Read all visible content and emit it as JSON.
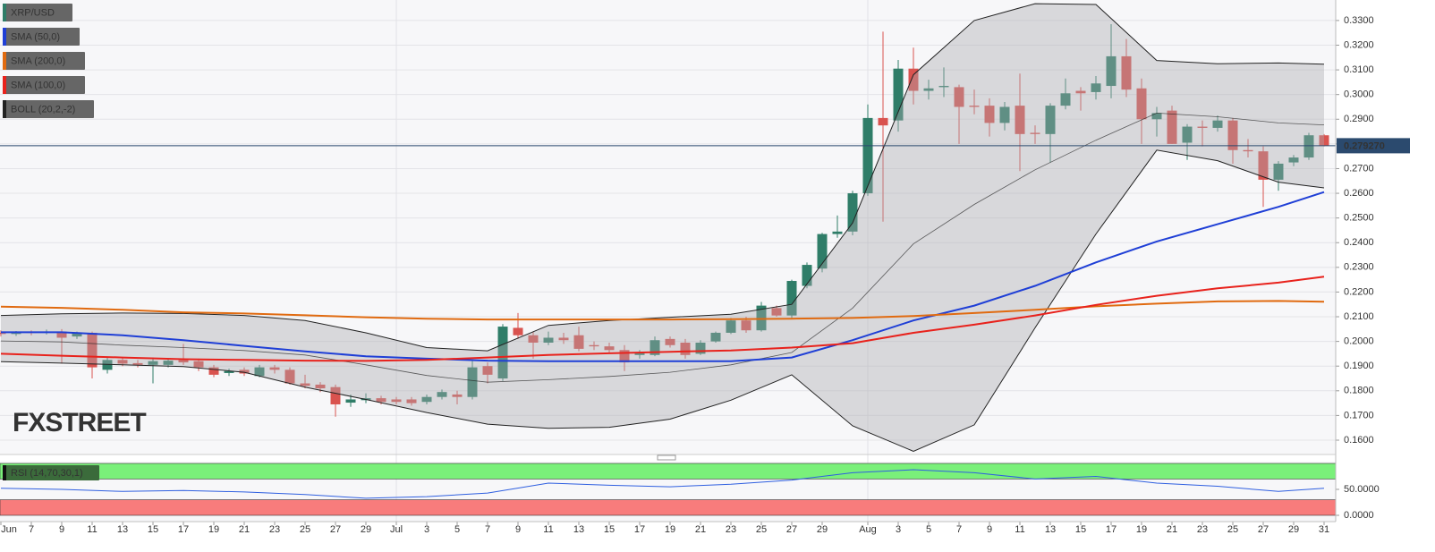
{
  "chart_data": {
    "type": "candlestick",
    "title": "XRP/USD",
    "up_color": "#2f7d68",
    "down_color": "#d9534f",
    "categories": [
      "Jun 5",
      "Jun 6",
      "Jun 7",
      "Jun 8",
      "Jun 9",
      "Jun 10",
      "Jun 11",
      "Jun 12",
      "Jun 13",
      "Jun 14",
      "Jun 15",
      "Jun 16",
      "Jun 17",
      "Jun 18",
      "Jun 19",
      "Jun 20",
      "Jun 21",
      "Jun 22",
      "Jun 23",
      "Jun 24",
      "Jun 25",
      "Jun 26",
      "Jun 27",
      "Jun 28",
      "Jun 29",
      "Jun 30",
      "Jul 1",
      "Jul 2",
      "Jul 3",
      "Jul 4",
      "Jul 5",
      "Jul 6",
      "Jul 7",
      "Jul 8",
      "Jul 9",
      "Jul 10",
      "Jul 11",
      "Jul 12",
      "Jul 13",
      "Jul 14",
      "Jul 15",
      "Jul 16",
      "Jul 17",
      "Jul 18",
      "Jul 19",
      "Jul 20",
      "Jul 21",
      "Jul 22",
      "Jul 23",
      "Jul 24",
      "Jul 25",
      "Jul 26",
      "Jul 27",
      "Jul 28",
      "Jul 29",
      "Jul 30",
      "Jul 31",
      "Aug 1",
      "Aug 2",
      "Aug 3",
      "Aug 4",
      "Aug 5",
      "Aug 6",
      "Aug 7",
      "Aug 8",
      "Aug 9",
      "Aug 10",
      "Aug 11",
      "Aug 12",
      "Aug 13",
      "Aug 14",
      "Aug 15",
      "Aug 16",
      "Aug 17",
      "Aug 18",
      "Aug 19",
      "Aug 20",
      "Aug 21",
      "Aug 22",
      "Aug 23",
      "Aug 24",
      "Aug 25",
      "Aug 26",
      "Aug 27",
      "Aug 28",
      "Aug 29",
      "Aug 30",
      "Aug 31"
    ],
    "open": [
      0.2035,
      0.203,
      0.2038,
      0.2035,
      0.204,
      0.202,
      0.2035,
      0.1885,
      0.1925,
      0.1912,
      0.1905,
      0.1905,
      0.1925,
      0.192,
      0.1895,
      0.1872,
      0.1885,
      0.186,
      0.1895,
      0.1885,
      0.183,
      0.1825,
      0.1815,
      0.1752,
      0.1762,
      0.177,
      0.1765,
      0.1765,
      0.1755,
      0.1775,
      0.1785,
      0.1775,
      0.19,
      0.185,
      0.2055,
      0.2025,
      0.1995,
      0.2015,
      0.2025,
      0.1985,
      0.198,
      0.1965,
      0.1945,
      0.1945,
      0.201,
      0.1995,
      0.195,
      0.2,
      0.2035,
      0.2085,
      0.2045,
      0.2135,
      0.2105,
      0.2225,
      0.2295,
      0.2435,
      0.2445,
      0.26,
      0.2905,
      0.2895,
      0.3105,
      0.3015,
      0.303,
      0.303,
      0.2955,
      0.2955,
      0.2885,
      0.2955,
      0.2845,
      0.284,
      0.2955,
      0.3015,
      0.301,
      0.3035,
      0.3155,
      0.3025,
      0.29,
      0.2935,
      0.2805,
      0.287,
      0.2865,
      0.2895,
      0.2775,
      0.277,
      0.2655,
      0.2725,
      0.2745,
      0.2835
    ],
    "high": [
      0.2045,
      0.2042,
      0.2045,
      0.2048,
      0.205,
      0.204,
      0.204,
      0.1935,
      0.1935,
      0.1925,
      0.1935,
      0.193,
      0.199,
      0.193,
      0.1905,
      0.189,
      0.1895,
      0.1905,
      0.1905,
      0.1895,
      0.1865,
      0.1835,
      0.1825,
      0.1785,
      0.179,
      0.178,
      0.1775,
      0.1775,
      0.1785,
      0.1805,
      0.18,
      0.1925,
      0.1915,
      0.207,
      0.2115,
      0.204,
      0.204,
      0.2035,
      0.206,
      0.2,
      0.1995,
      0.1985,
      0.1965,
      0.202,
      0.202,
      0.201,
      0.2005,
      0.204,
      0.2095,
      0.21,
      0.216,
      0.2145,
      0.225,
      0.232,
      0.244,
      0.251,
      0.261,
      0.296,
      0.3255,
      0.314,
      0.319,
      0.306,
      0.311,
      0.304,
      0.302,
      0.2985,
      0.297,
      0.3085,
      0.2875,
      0.2965,
      0.3065,
      0.303,
      0.3075,
      0.3285,
      0.3225,
      0.3065,
      0.295,
      0.2955,
      0.288,
      0.2895,
      0.2915,
      0.2905,
      0.282,
      0.279,
      0.273,
      0.2755,
      0.2845,
      0.284
    ],
    "low": [
      0.202,
      0.2022,
      0.2025,
      0.2028,
      0.191,
      0.201,
      0.185,
      0.187,
      0.19,
      0.1895,
      0.183,
      0.1895,
      0.1905,
      0.188,
      0.1855,
      0.186,
      0.186,
      0.1855,
      0.187,
      0.1825,
      0.181,
      0.1795,
      0.1695,
      0.1735,
      0.175,
      0.1745,
      0.1745,
      0.174,
      0.1745,
      0.1765,
      0.1745,
      0.1765,
      0.183,
      0.184,
      0.201,
      0.193,
      0.1985,
      0.199,
      0.196,
      0.1965,
      0.1955,
      0.188,
      0.193,
      0.194,
      0.1975,
      0.193,
      0.1945,
      0.1995,
      0.203,
      0.2035,
      0.204,
      0.21,
      0.2095,
      0.2215,
      0.228,
      0.242,
      0.243,
      0.259,
      0.2485,
      0.285,
      0.296,
      0.298,
      0.299,
      0.28,
      0.292,
      0.283,
      0.2855,
      0.269,
      0.28,
      0.2725,
      0.294,
      0.2935,
      0.298,
      0.2985,
      0.299,
      0.28,
      0.283,
      0.28,
      0.2735,
      0.279,
      0.285,
      0.272,
      0.2745,
      0.2545,
      0.261,
      0.271,
      0.2735,
      0.279
    ],
    "close": [
      0.203,
      0.2038,
      0.2035,
      0.204,
      0.2015,
      0.2035,
      0.1895,
      0.1925,
      0.191,
      0.1905,
      0.192,
      0.1922,
      0.1915,
      0.1895,
      0.1865,
      0.188,
      0.187,
      0.1895,
      0.1885,
      0.183,
      0.182,
      0.181,
      0.1745,
      0.1765,
      0.177,
      0.1755,
      0.1755,
      0.175,
      0.1775,
      0.1795,
      0.1775,
      0.1895,
      0.1865,
      0.206,
      0.2025,
      0.1995,
      0.2015,
      0.2005,
      0.197,
      0.198,
      0.1965,
      0.1915,
      0.1955,
      0.2005,
      0.1985,
      0.1945,
      0.1995,
      0.2035,
      0.2085,
      0.2045,
      0.2145,
      0.2105,
      0.2245,
      0.231,
      0.2435,
      0.2445,
      0.26,
      0.2905,
      0.2875,
      0.3105,
      0.3015,
      0.3025,
      0.3035,
      0.295,
      0.295,
      0.2885,
      0.295,
      0.284,
      0.284,
      0.2955,
      0.3005,
      0.3005,
      0.3045,
      0.3155,
      0.302,
      0.29,
      0.2925,
      0.28,
      0.287,
      0.2865,
      0.2895,
      0.2775,
      0.277,
      0.2655,
      0.272,
      0.2745,
      0.2835,
      0.27927
    ],
    "ylim": [
      0.1542,
      0.3383
    ],
    "yticks": [
      {
        "value": 0.16,
        "label": "0.1600"
      },
      {
        "value": 0.17,
        "label": "0.1700"
      },
      {
        "value": 0.18,
        "label": "0.1800"
      },
      {
        "value": 0.19,
        "label": "0.1900"
      },
      {
        "value": 0.2,
        "label": "0.2000"
      },
      {
        "value": 0.21,
        "label": "0.2100"
      },
      {
        "value": 0.22,
        "label": "0.2200"
      },
      {
        "value": 0.23,
        "label": "0.2300"
      },
      {
        "value": 0.24,
        "label": "0.2400"
      },
      {
        "value": 0.25,
        "label": "0.2500"
      },
      {
        "value": 0.26,
        "label": "0.2600"
      },
      {
        "value": 0.27,
        "label": "0.2700"
      },
      {
        "value": 0.28,
        "label": "0.2800"
      },
      {
        "value": 0.29,
        "label": "0.2900"
      },
      {
        "value": 0.3,
        "label": "0.3000"
      },
      {
        "value": 0.31,
        "label": "0.3100"
      },
      {
        "value": 0.32,
        "label": "0.3200"
      },
      {
        "value": 0.33,
        "label": "0.3300"
      }
    ],
    "xticks": [
      {
        "value": "Jun 5",
        "label": "Jun"
      },
      {
        "value": "Jun 7",
        "label": "7"
      },
      {
        "value": "Jun 9",
        "label": "9"
      },
      {
        "value": "Jun 11",
        "label": "11"
      },
      {
        "value": "Jun 13",
        "label": "13"
      },
      {
        "value": "Jun 15",
        "label": "15"
      },
      {
        "value": "Jun 17",
        "label": "17"
      },
      {
        "value": "Jun 19",
        "label": "19"
      },
      {
        "value": "Jun 21",
        "label": "21"
      },
      {
        "value": "Jun 23",
        "label": "23"
      },
      {
        "value": "Jun 25",
        "label": "25"
      },
      {
        "value": "Jun 27",
        "label": "27"
      },
      {
        "value": "Jun 29",
        "label": "29"
      },
      {
        "value": "Jul 1",
        "label": "Jul"
      },
      {
        "value": "Jul 3",
        "label": "3"
      },
      {
        "value": "Jul 5",
        "label": "5"
      },
      {
        "value": "Jul 7",
        "label": "7"
      },
      {
        "value": "Jul 9",
        "label": "9"
      },
      {
        "value": "Jul 11",
        "label": "11"
      },
      {
        "value": "Jul 13",
        "label": "13"
      },
      {
        "value": "Jul 15",
        "label": "15"
      },
      {
        "value": "Jul 17",
        "label": "17"
      },
      {
        "value": "Jul 19",
        "label": "19"
      },
      {
        "value": "Jul 21",
        "label": "21"
      },
      {
        "value": "Jul 23",
        "label": "23"
      },
      {
        "value": "Jul 25",
        "label": "25"
      },
      {
        "value": "Jul 27",
        "label": "27"
      },
      {
        "value": "Jul 29",
        "label": "29"
      },
      {
        "value": "Aug 1",
        "label": "Aug"
      },
      {
        "value": "Aug 3",
        "label": "3"
      },
      {
        "value": "Aug 5",
        "label": "5"
      },
      {
        "value": "Aug 7",
        "label": "7"
      },
      {
        "value": "Aug 9",
        "label": "9"
      },
      {
        "value": "Aug 11",
        "label": "11"
      },
      {
        "value": "Aug 13",
        "label": "13"
      },
      {
        "value": "Aug 15",
        "label": "15"
      },
      {
        "value": "Aug 17",
        "label": "17"
      },
      {
        "value": "Aug 19",
        "label": "19"
      },
      {
        "value": "Aug 21",
        "label": "21"
      },
      {
        "value": "Aug 23",
        "label": "23"
      },
      {
        "value": "Aug 25",
        "label": "25"
      },
      {
        "value": "Aug 27",
        "label": "27"
      },
      {
        "value": "Aug 29",
        "label": "29"
      },
      {
        "value": "Aug 31",
        "label": "31"
      }
    ],
    "month_lines": [
      "Jul 1",
      "Aug 1"
    ],
    "last_price": {
      "value": 0.27927,
      "label": "0.279270"
    },
    "series": [
      {
        "name": "SMA (50,0)",
        "color": "#1f3fd6",
        "x": [
          "Jun 5",
          "Jun 9",
          "Jun 13",
          "Jun 17",
          "Jun 21",
          "Jun 25",
          "Jun 29",
          "Jul 3",
          "Jul 7",
          "Jul 11",
          "Jul 15",
          "Jul 19",
          "Jul 23",
          "Jul 27",
          "Jul 31",
          "Aug 4",
          "Aug 8",
          "Aug 12",
          "Aug 16",
          "Aug 20",
          "Aug 24",
          "Aug 28",
          "Aug 31"
        ],
        "values": [
          0.2037,
          0.2037,
          0.2025,
          0.2005,
          0.1982,
          0.196,
          0.194,
          0.193,
          0.1922,
          0.192,
          0.192,
          0.192,
          0.192,
          0.1935,
          0.2005,
          0.2085,
          0.2145,
          0.2225,
          0.232,
          0.2405,
          0.2475,
          0.2545,
          0.2605
        ]
      },
      {
        "name": "SMA (200,0)",
        "color": "#e06a10",
        "x": [
          "Jun 5",
          "Jun 9",
          "Jun 13",
          "Jun 17",
          "Jun 21",
          "Jun 25",
          "Jun 29",
          "Jul 3",
          "Jul 7",
          "Jul 11",
          "Jul 15",
          "Jul 19",
          "Jul 23",
          "Jul 27",
          "Jul 31",
          "Aug 4",
          "Aug 8",
          "Aug 12",
          "Aug 16",
          "Aug 20",
          "Aug 24",
          "Aug 28",
          "Aug 31"
        ],
        "values": [
          0.2141,
          0.2136,
          0.2128,
          0.2118,
          0.2113,
          0.2106,
          0.2098,
          0.2092,
          0.2089,
          0.2089,
          0.2089,
          0.2089,
          0.209,
          0.2092,
          0.2095,
          0.2103,
          0.2115,
          0.2128,
          0.2142,
          0.2153,
          0.2162,
          0.2164,
          0.2161
        ]
      },
      {
        "name": "SMA (100,0)",
        "color": "#e8221c",
        "x": [
          "Jun 5",
          "Jun 9",
          "Jun 13",
          "Jun 17",
          "Jun 21",
          "Jun 25",
          "Jun 29",
          "Jul 3",
          "Jul 7",
          "Jul 11",
          "Jul 15",
          "Jul 19",
          "Jul 23",
          "Jul 27",
          "Jul 31",
          "Aug 4",
          "Aug 8",
          "Aug 12",
          "Aug 16",
          "Aug 20",
          "Aug 24",
          "Aug 28",
          "Aug 31"
        ],
        "values": [
          0.195,
          0.1942,
          0.1935,
          0.1928,
          0.1925,
          0.1922,
          0.1921,
          0.1925,
          0.1935,
          0.1945,
          0.1952,
          0.1958,
          0.1963,
          0.1975,
          0.1993,
          0.2035,
          0.2068,
          0.2105,
          0.2148,
          0.2185,
          0.2215,
          0.2238,
          0.2262
        ]
      }
    ],
    "bollinger": {
      "name": "BOLL (20,2,-2)",
      "color": "#222222",
      "x": [
        "Jun 5",
        "Jun 9",
        "Jun 13",
        "Jun 17",
        "Jun 21",
        "Jun 25",
        "Jun 29",
        "Jul 3",
        "Jul 7",
        "Jul 11",
        "Jul 15",
        "Jul 19",
        "Jul 23",
        "Jul 27",
        "Jul 31",
        "Aug 4",
        "Aug 8",
        "Aug 12",
        "Aug 16",
        "Aug 20",
        "Aug 24",
        "Aug 28",
        "Aug 31"
      ],
      "upper": [
        0.2105,
        0.2112,
        0.2115,
        0.2113,
        0.2105,
        0.2085,
        0.2035,
        0.1975,
        0.1962,
        0.2065,
        0.2085,
        0.2098,
        0.211,
        0.215,
        0.248,
        0.308,
        0.33,
        0.3368,
        0.3365,
        0.3138,
        0.3125,
        0.3128,
        0.3123
      ],
      "middle": [
        0.2002,
        0.1998,
        0.1985,
        0.1975,
        0.1963,
        0.1945,
        0.1905,
        0.1862,
        0.1835,
        0.1845,
        0.1858,
        0.1875,
        0.1905,
        0.1955,
        0.2135,
        0.2395,
        0.2555,
        0.2695,
        0.2815,
        0.2925,
        0.291,
        0.2885,
        0.2877
      ],
      "lower": [
        0.1918,
        0.1912,
        0.1905,
        0.1898,
        0.1875,
        0.1815,
        0.1765,
        0.1712,
        0.1665,
        0.1648,
        0.1652,
        0.1685,
        0.1762,
        0.1865,
        0.1658,
        0.1555,
        0.1662,
        0.2055,
        0.2435,
        0.2775,
        0.2732,
        0.2645,
        0.2622
      ]
    },
    "rsi": {
      "name": "RSI (14,70,30,1)",
      "color": "#2f5fe0",
      "overbought": 70,
      "oversold": 30,
      "x": [
        "Jun 5",
        "Jun 9",
        "Jun 13",
        "Jun 17",
        "Jun 21",
        "Jun 25",
        "Jun 29",
        "Jul 3",
        "Jul 7",
        "Jul 11",
        "Jul 15",
        "Jul 19",
        "Jul 23",
        "Jul 27",
        "Jul 31",
        "Aug 4",
        "Aug 8",
        "Aug 12",
        "Aug 16",
        "Aug 20",
        "Aug 24",
        "Aug 28",
        "Aug 31"
      ],
      "values": [
        52,
        50,
        46,
        48,
        45,
        40,
        33,
        36,
        43,
        62,
        58,
        55,
        60,
        68,
        82,
        88,
        82,
        70,
        75,
        62,
        56,
        46,
        52
      ],
      "ylim": [
        0,
        100
      ],
      "yticks": [
        {
          "value": 50,
          "label": "50.0000"
        },
        {
          "value": 0,
          "label": "0.0000"
        }
      ]
    },
    "watermark": "FXSTREET"
  }
}
